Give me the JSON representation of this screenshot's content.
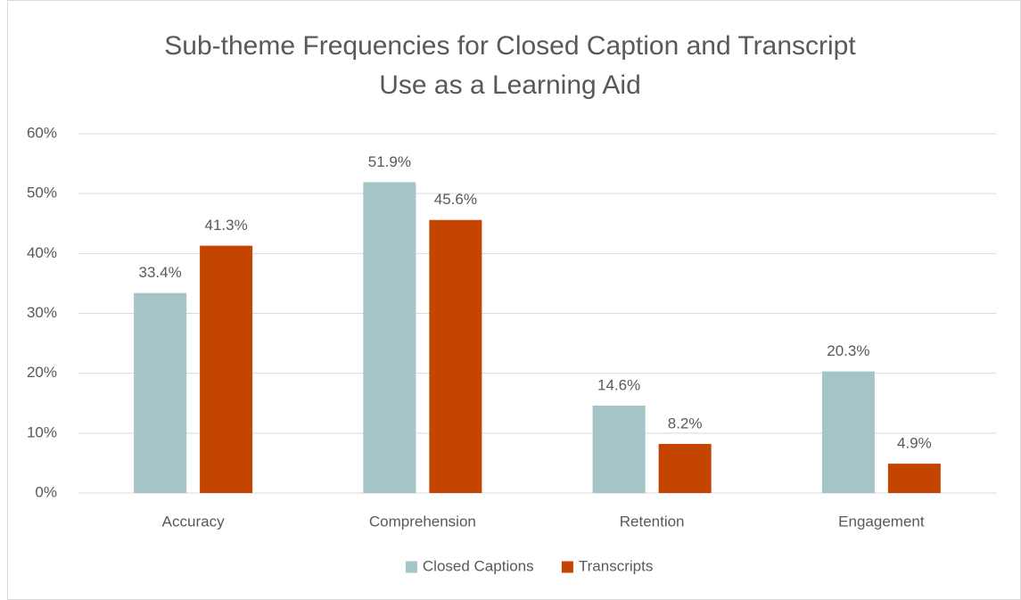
{
  "chart_data": {
    "type": "bar",
    "title": "Sub-theme Frequencies for Closed Caption and Transcript Use as a Learning Aid",
    "categories": [
      "Accuracy",
      "Comprehension",
      "Retention",
      "Engagement"
    ],
    "series": [
      {
        "name": "Closed Captions",
        "color": "#a5c4c7",
        "values": [
          33.4,
          51.9,
          14.6,
          20.3
        ],
        "value_labels": [
          "33.4%",
          "51.9%",
          "14.6%",
          "20.3%"
        ]
      },
      {
        "name": "Transcripts",
        "color": "#c44500",
        "values": [
          41.3,
          45.6,
          8.2,
          4.9
        ],
        "value_labels": [
          "41.3%",
          "45.6%",
          "8.2%",
          "4.9%"
        ]
      }
    ],
    "ylim": [
      0,
      60
    ],
    "yticks": [
      {
        "value": 0,
        "label": "0%"
      },
      {
        "value": 10,
        "label": "10%"
      },
      {
        "value": 20,
        "label": "20%"
      },
      {
        "value": 30,
        "label": "30%"
      },
      {
        "value": 40,
        "label": "40%"
      },
      {
        "value": 50,
        "label": "50%"
      },
      {
        "value": 60,
        "label": "60%"
      }
    ],
    "grid": true,
    "legend": "bottom"
  }
}
